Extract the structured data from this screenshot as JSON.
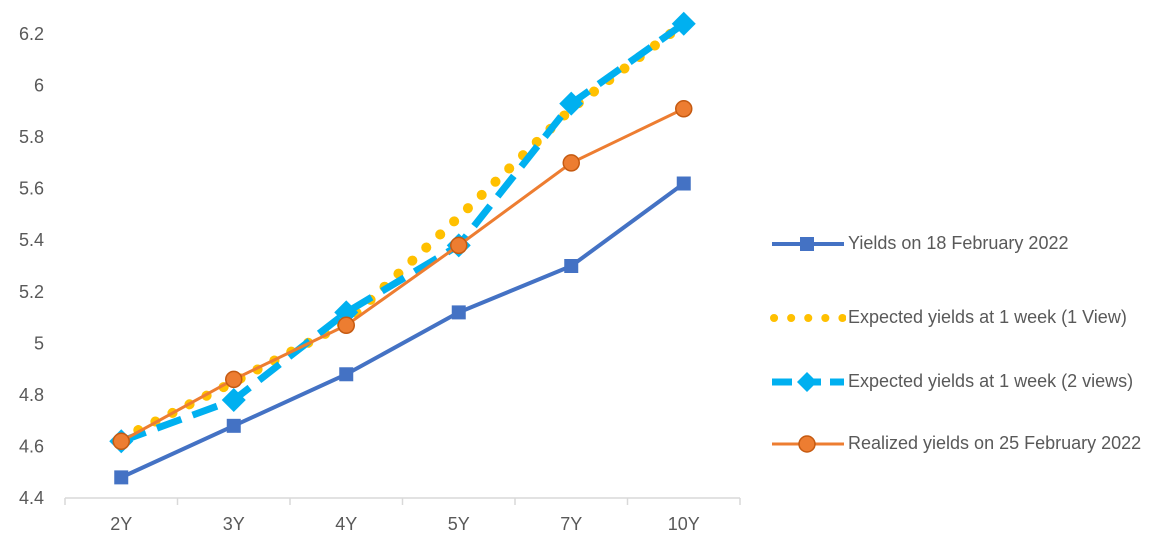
{
  "chart_data": {
    "type": "line",
    "categories": [
      "2Y",
      "3Y",
      "4Y",
      "5Y",
      "7Y",
      "10Y"
    ],
    "ylim": [
      4.4,
      6.3
    ],
    "yticks": [
      "4.4",
      "4.6",
      "4.8",
      "5",
      "5.2",
      "5.4",
      "5.6",
      "5.8",
      "6",
      "6.2"
    ],
    "grid": false,
    "legend_position": "right",
    "series": [
      {
        "name": "Yields on 18 February 2022",
        "color": "#4472C4",
        "style": "solid",
        "marker": "square",
        "values": [
          4.48,
          4.68,
          4.88,
          5.12,
          5.3,
          5.62
        ]
      },
      {
        "name": "Expected yields at 1 week (1 View)",
        "color": "#FFC000",
        "style": "dotted",
        "marker": "none",
        "values": [
          4.63,
          4.85,
          5.08,
          5.49,
          5.91,
          6.24
        ]
      },
      {
        "name": "Expected yields at 1 week (2 views)",
        "color": "#00B0F0",
        "style": "dashed",
        "marker": "diamond",
        "values": [
          4.62,
          4.78,
          5.12,
          5.38,
          5.93,
          6.24
        ]
      },
      {
        "name": "Realized yields on 25 February 2022",
        "color": "#ED7D31",
        "style": "solid",
        "marker": "circle",
        "values": [
          4.62,
          4.86,
          5.07,
          5.38,
          5.7,
          5.91
        ]
      }
    ]
  }
}
